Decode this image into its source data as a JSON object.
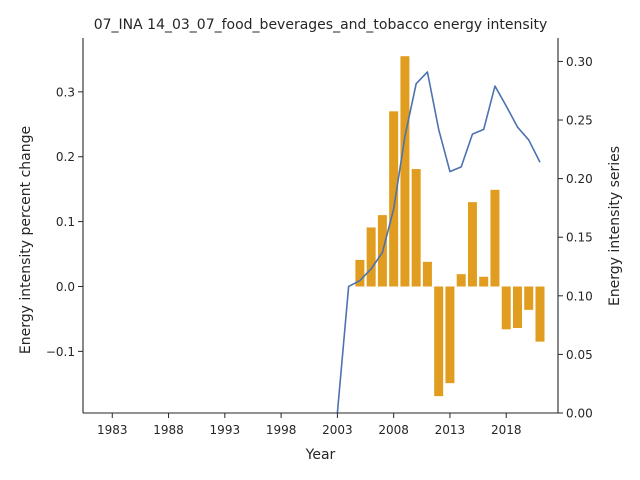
{
  "chart_data": {
    "type": "bar+line",
    "title": "07_INA 14_03_07_food_beverages_and_tobacco energy intensity",
    "xlabel": "Year",
    "ylabel_left": "Energy intensity percent change",
    "ylabel_right": "Energy intensity series",
    "x_ticks": [
      "1983",
      "1988",
      "1993",
      "1998",
      "2003",
      "2008",
      "2013",
      "2018"
    ],
    "x_range": [
      1980.4,
      2022.6
    ],
    "ylim_left": [
      -0.195,
      0.383
    ],
    "ylim_right": [
      0.0,
      0.32
    ],
    "left_ticks": [
      {
        "value": -0.1,
        "label": "−0.1"
      },
      {
        "value": 0.0,
        "label": "0.0"
      },
      {
        "value": 0.1,
        "label": "0.1"
      },
      {
        "value": 0.2,
        "label": "0.2"
      },
      {
        "value": 0.3,
        "label": "0.3"
      }
    ],
    "right_ticks": [
      {
        "value": 0.0,
        "label": "0.00"
      },
      {
        "value": 0.05,
        "label": "0.05"
      },
      {
        "value": 0.1,
        "label": "0.10"
      },
      {
        "value": 0.15,
        "label": "0.15"
      },
      {
        "value": 0.2,
        "label": "0.20"
      },
      {
        "value": 0.25,
        "label": "0.25"
      },
      {
        "value": 0.3,
        "label": "0.30"
      }
    ],
    "bar_color": "#e19d1f",
    "line_color": "#4c72b0",
    "bars": {
      "x": [
        2005,
        2006,
        2007,
        2008,
        2009,
        2010,
        2011,
        2012,
        2013,
        2014,
        2015,
        2016,
        2017,
        2018,
        2019,
        2020,
        2021
      ],
      "values": [
        0.041,
        0.091,
        0.11,
        0.27,
        0.355,
        0.181,
        0.038,
        -0.169,
        -0.149,
        0.019,
        0.13,
        0.015,
        0.149,
        -0.066,
        -0.064,
        -0.036,
        -0.085
      ]
    },
    "line": {
      "x": [
        2003,
        2004,
        2005,
        2006,
        2007,
        2008,
        2009,
        2010,
        2011,
        2012,
        2013,
        2014,
        2015,
        2016,
        2017,
        2018,
        2019,
        2020,
        2021
      ],
      "values": [
        0.0,
        0.108,
        0.113,
        0.123,
        0.137,
        0.174,
        0.236,
        0.281,
        0.291,
        0.242,
        0.206,
        0.21,
        0.238,
        0.242,
        0.279,
        0.262,
        0.244,
        0.233,
        0.214
      ]
    },
    "grid": false
  }
}
